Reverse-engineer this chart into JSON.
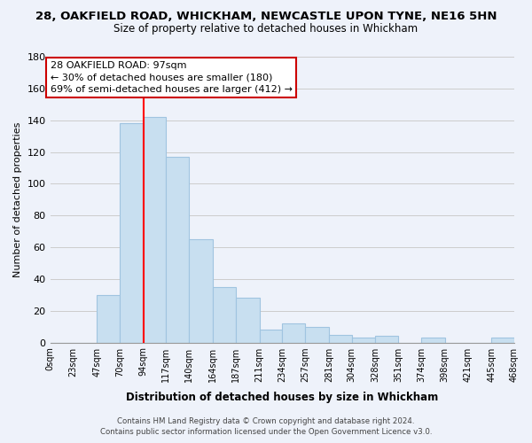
{
  "title_line1": "28, OAKFIELD ROAD, WHICKHAM, NEWCASTLE UPON TYNE, NE16 5HN",
  "title_line2": "Size of property relative to detached houses in Whickham",
  "xlabel": "Distribution of detached houses by size in Whickham",
  "ylabel": "Number of detached properties",
  "bin_edges": [
    0,
    23,
    47,
    70,
    94,
    117,
    140,
    164,
    187,
    211,
    234,
    257,
    281,
    304,
    328,
    351,
    374,
    398,
    421,
    445,
    468
  ],
  "bin_labels": [
    "0sqm",
    "23sqm",
    "47sqm",
    "70sqm",
    "94sqm",
    "117sqm",
    "140sqm",
    "164sqm",
    "187sqm",
    "211sqm",
    "234sqm",
    "257sqm",
    "281sqm",
    "304sqm",
    "328sqm",
    "351sqm",
    "374sqm",
    "398sqm",
    "421sqm",
    "445sqm",
    "468sqm"
  ],
  "counts": [
    0,
    0,
    30,
    138,
    142,
    117,
    65,
    35,
    28,
    8,
    12,
    10,
    5,
    3,
    4,
    0,
    3,
    0,
    0,
    3
  ],
  "bar_color": "#c8dff0",
  "bar_edge_color": "#a0c4e0",
  "grid_color": "#cccccc",
  "ylim": [
    0,
    180
  ],
  "yticks": [
    0,
    20,
    40,
    60,
    80,
    100,
    120,
    140,
    160,
    180
  ],
  "vline_x": 94,
  "vline_color": "red",
  "annotation_text": "28 OAKFIELD ROAD: 97sqm\n← 30% of detached houses are smaller (180)\n69% of semi-detached houses are larger (412) →",
  "footer_line1": "Contains HM Land Registry data © Crown copyright and database right 2024.",
  "footer_line2": "Contains public sector information licensed under the Open Government Licence v3.0.",
  "background_color": "#eef2fa"
}
